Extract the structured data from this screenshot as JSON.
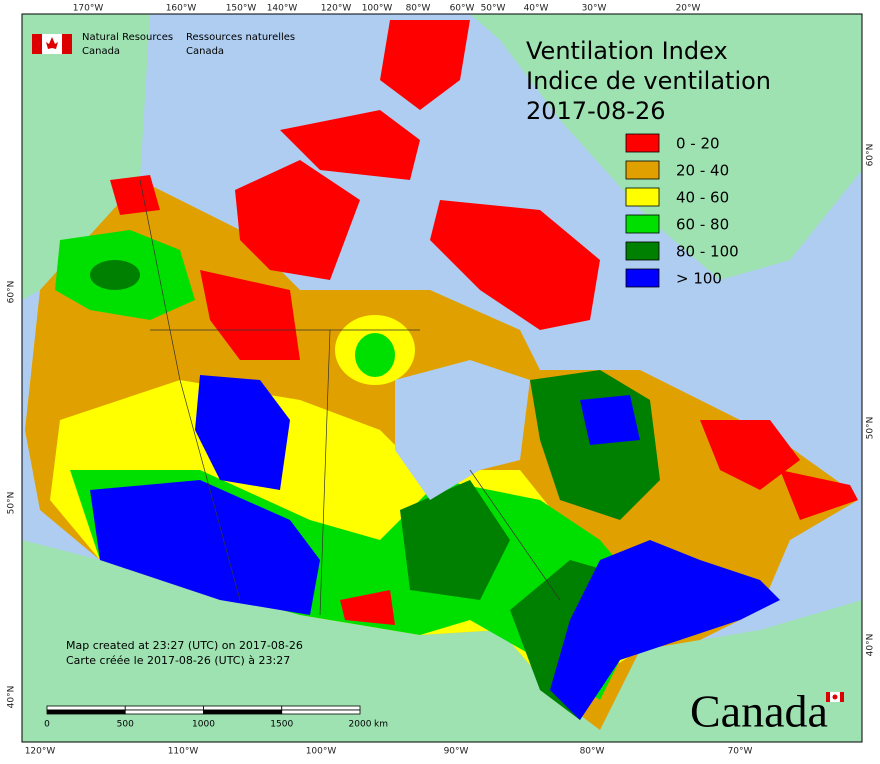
{
  "header": {
    "org_en": [
      "Natural Resources",
      "Canada"
    ],
    "org_fr": [
      "Ressources naturelles",
      "Canada"
    ]
  },
  "title": [
    "Ventilation Index",
    "Indice de ventilation",
    "2017-08-26"
  ],
  "legend": [
    {
      "label": "0 - 20",
      "color": "#ff0000"
    },
    {
      "label": "20 - 40",
      "color": "#e0a000"
    },
    {
      "label": "40 - 60",
      "color": "#ffff00"
    },
    {
      "label": "60 - 80",
      "color": "#00e000"
    },
    {
      "label": "80 - 100",
      "color": "#008000"
    },
    {
      "label": "> 100",
      "color": "#0000ff"
    }
  ],
  "graticule": {
    "top": [
      "170°W",
      "160°W",
      "150°W",
      "140°W",
      "120°W",
      "100°W",
      "80°W",
      "60°W",
      "50°W",
      "40°W",
      "30°W",
      "20°W"
    ],
    "bottom": [
      "120°W",
      "110°W",
      "100°W",
      "90°W",
      "80°W",
      "70°W"
    ],
    "left": [
      "60°N",
      "50°N",
      "40°N"
    ],
    "right": [
      "60°N",
      "50°N",
      "40°N"
    ]
  },
  "footer": {
    "created": [
      "Map created at 23:27 (UTC) on 2017-08-26",
      "Carte créée le 2017-08-26 (UTC) à 23:27"
    ],
    "scale": {
      "ticks": [
        0,
        500,
        1000,
        1500,
        2000
      ],
      "unit": "km"
    },
    "wordmark": "Canada"
  }
}
